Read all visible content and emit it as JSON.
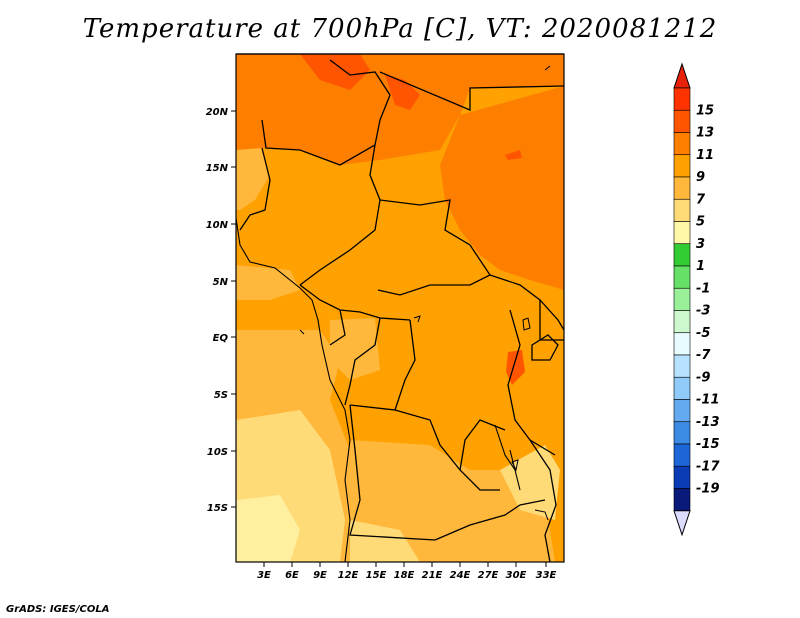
{
  "title": "Temperature at 700hPa [C], VT: 2020081212",
  "footer": "GrADS: IGES/COLA",
  "map": {
    "lat_labels": [
      "20N",
      "15N",
      "10N",
      "5N",
      "EQ",
      "5S",
      "10S",
      "15S"
    ],
    "lon_labels": [
      "3E",
      "6E",
      "9E",
      "12E",
      "15E",
      "18E",
      "21E",
      "24E",
      "27E",
      "30E",
      "33E"
    ]
  },
  "colorbar": {
    "labels": [
      "15",
      "13",
      "11",
      "9",
      "7",
      "5",
      "3",
      "1",
      "-1",
      "-3",
      "-5",
      "-7",
      "-9",
      "-11",
      "-13",
      "-15",
      "-17",
      "-19"
    ],
    "colors": [
      "#ff3300",
      "#ff5500",
      "#fe7f00",
      "#ffa100",
      "#ffb73c",
      "#ffdb78",
      "#fff8a8",
      "#33cc33",
      "#66e066",
      "#99f099",
      "#cdf7cd",
      "#e8fbff",
      "#b6e1ff",
      "#8fcaf8",
      "#63aaf0",
      "#3b8be5",
      "#1c66d8",
      "#0a3cb5",
      "#0a1a7a"
    ],
    "arrow_top_color": "#e8220a",
    "arrow_bottom_color": "#dcdcff"
  }
}
